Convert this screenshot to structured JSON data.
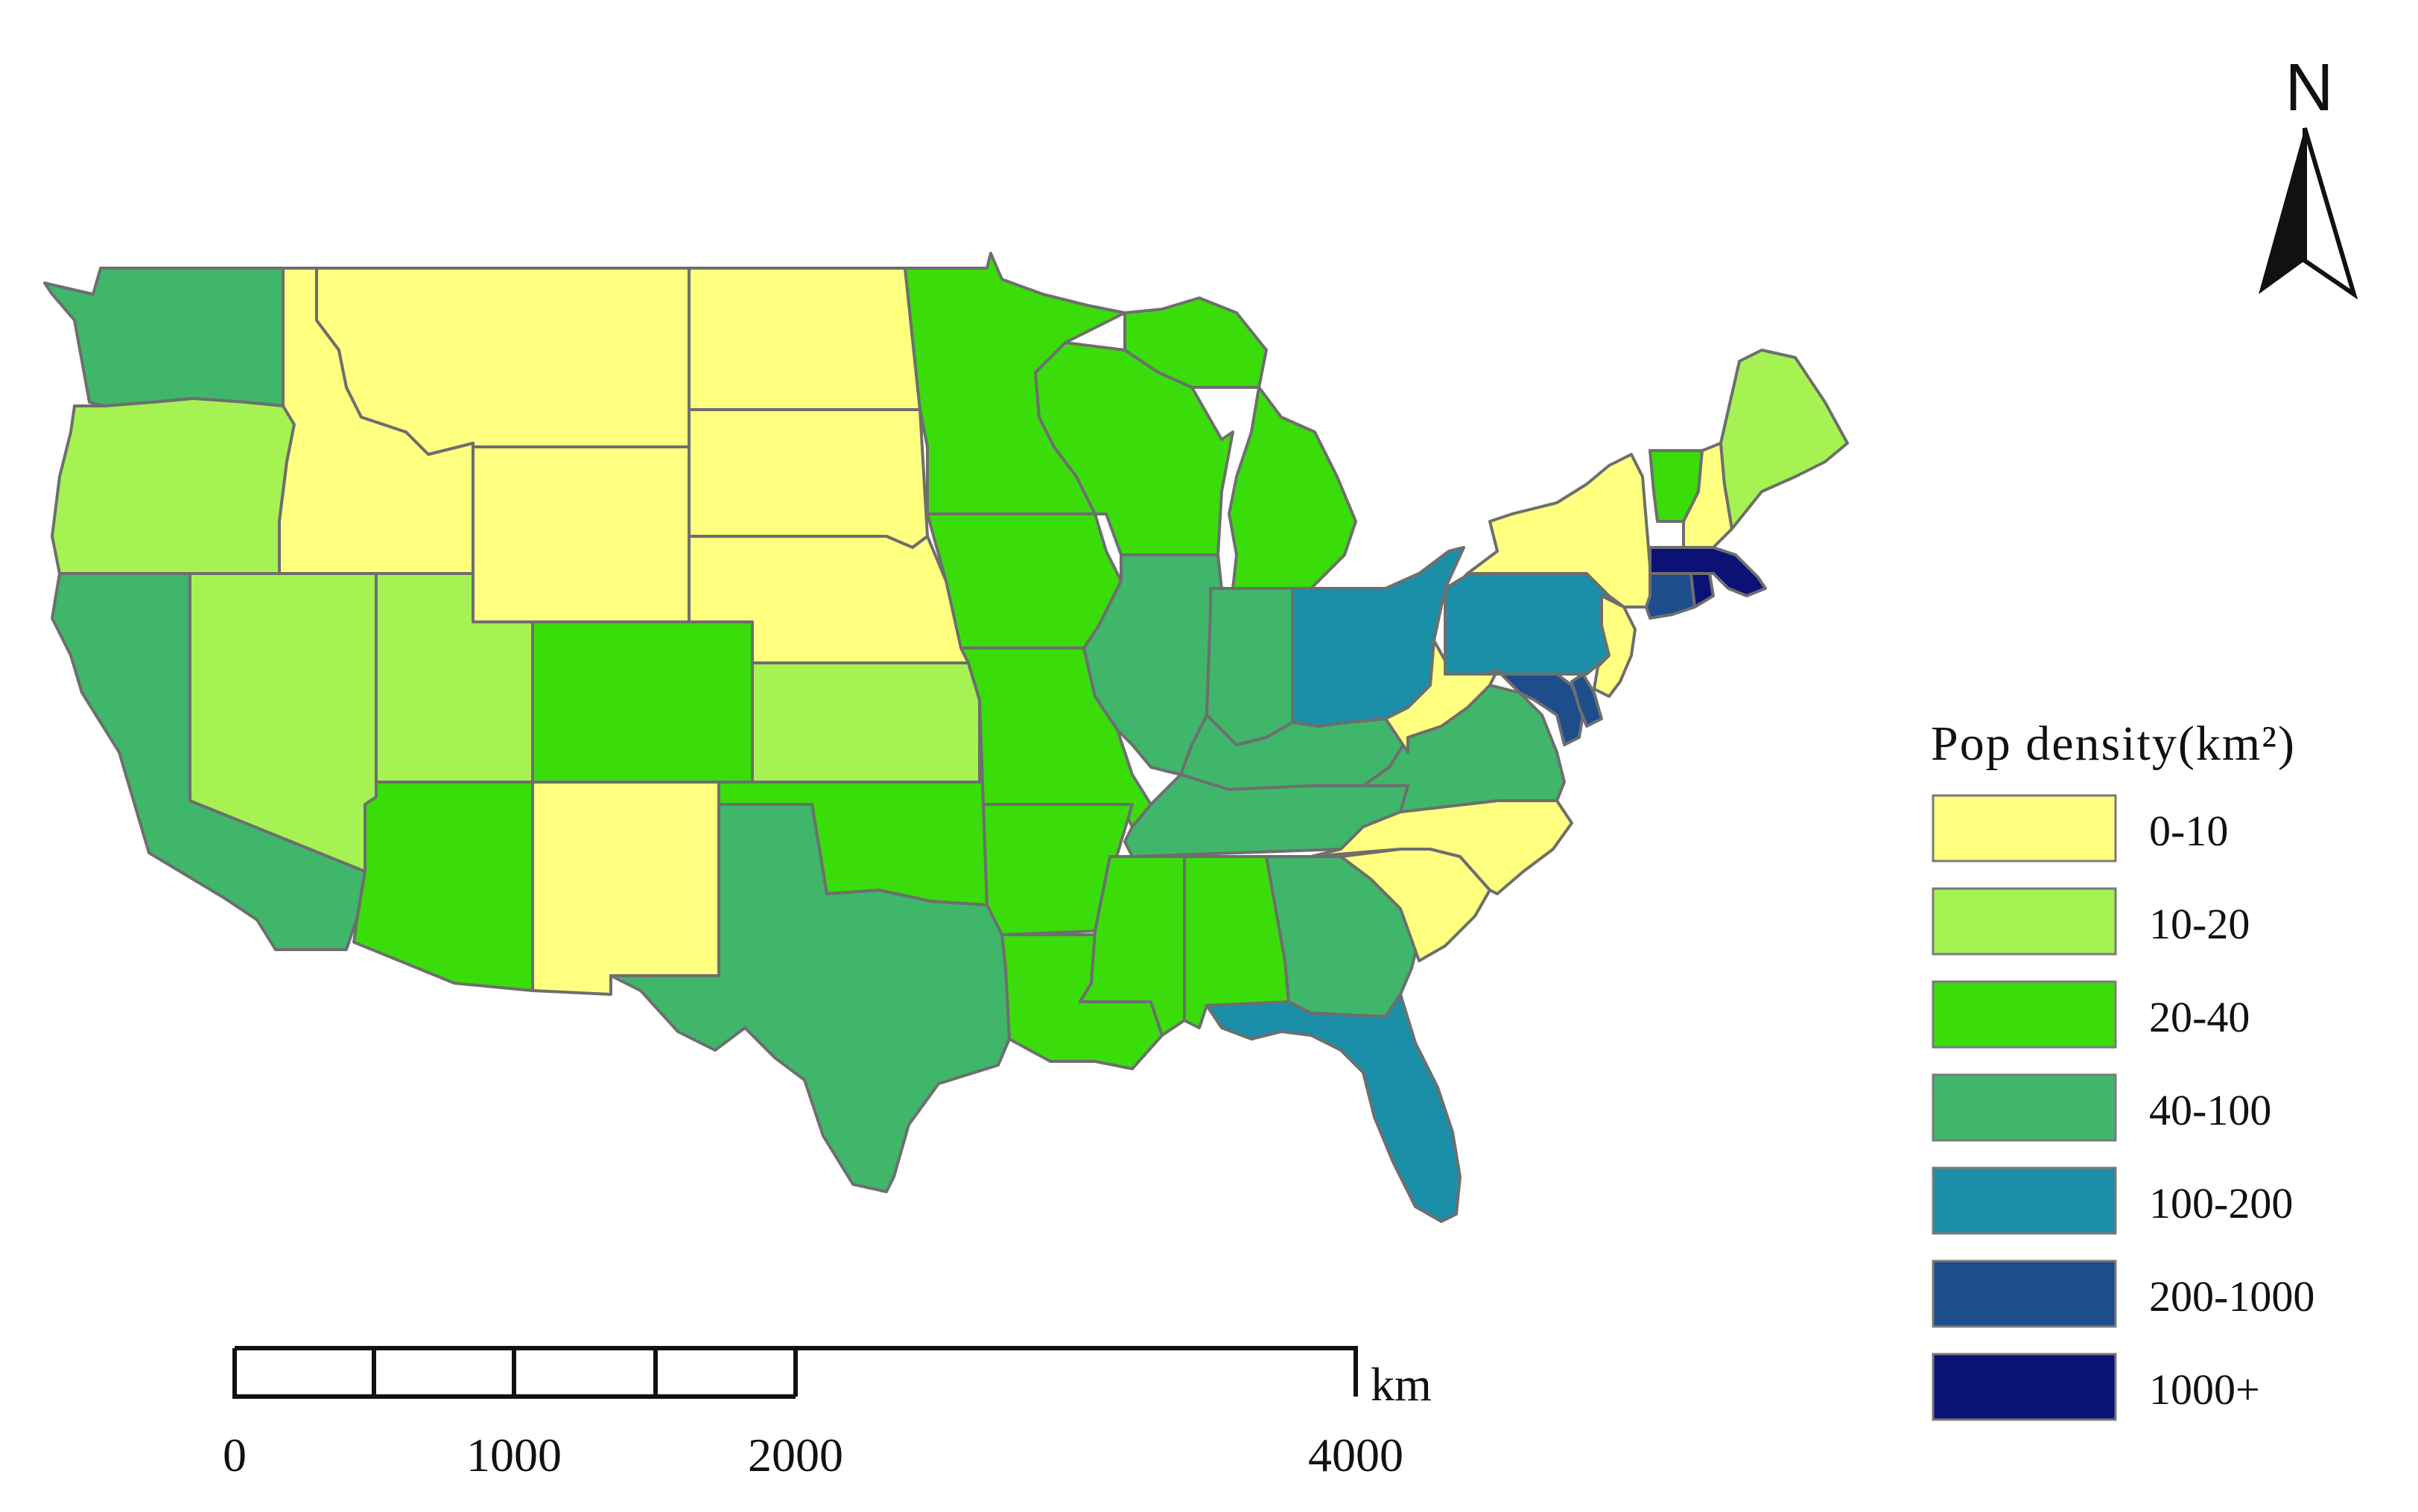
{
  "legend": {
    "title": "Pop density(km²)",
    "classes": [
      {
        "label": "0-10",
        "color": "#FFFF80"
      },
      {
        "label": "10-20",
        "color": "#A6F252"
      },
      {
        "label": "20-40",
        "color": "#3ADD0A"
      },
      {
        "label": "40-100",
        "color": "#3FB66A"
      },
      {
        "label": "100-200",
        "color": "#1B8EA8"
      },
      {
        "label": "200-1000",
        "color": "#1E4D8C"
      },
      {
        "label": "1000+",
        "color": "#0B1276"
      }
    ]
  },
  "north_arrow": {
    "letter": "N",
    "icon": "north-arrow-icon"
  },
  "scale_bar": {
    "unit": "km",
    "labels": [
      "0",
      "1000",
      "2000",
      "4000"
    ],
    "ticks_km": [
      0,
      1000,
      2000,
      4000
    ]
  },
  "states": [
    {
      "name": "WA",
      "class": 3
    },
    {
      "name": "OR",
      "class": 1
    },
    {
      "name": "CA",
      "class": 3
    },
    {
      "name": "NV",
      "class": 1
    },
    {
      "name": "ID",
      "class": 0
    },
    {
      "name": "MT",
      "class": 0
    },
    {
      "name": "WY",
      "class": 0
    },
    {
      "name": "UT",
      "class": 1
    },
    {
      "name": "AZ",
      "class": 2
    },
    {
      "name": "CO",
      "class": 2
    },
    {
      "name": "NM",
      "class": 0
    },
    {
      "name": "ND",
      "class": 0
    },
    {
      "name": "SD",
      "class": 0
    },
    {
      "name": "NE",
      "class": 0
    },
    {
      "name": "KS",
      "class": 1
    },
    {
      "name": "OK",
      "class": 2
    },
    {
      "name": "TX",
      "class": 3
    },
    {
      "name": "MN",
      "class": 2
    },
    {
      "name": "IA",
      "class": 2
    },
    {
      "name": "MO",
      "class": 2
    },
    {
      "name": "AR",
      "class": 2
    },
    {
      "name": "LA",
      "class": 2
    },
    {
      "name": "WI",
      "class": 2
    },
    {
      "name": "MI",
      "class": 2
    },
    {
      "name": "IL",
      "class": 3
    },
    {
      "name": "IN",
      "class": 3
    },
    {
      "name": "OH",
      "class": 4
    },
    {
      "name": "KY",
      "class": 3
    },
    {
      "name": "TN",
      "class": 3
    },
    {
      "name": "MS",
      "class": 2
    },
    {
      "name": "AL",
      "class": 2
    },
    {
      "name": "GA",
      "class": 3
    },
    {
      "name": "FL",
      "class": 4
    },
    {
      "name": "SC",
      "class": 0
    },
    {
      "name": "NC",
      "class": 0
    },
    {
      "name": "VA",
      "class": 3
    },
    {
      "name": "WV",
      "class": 0
    },
    {
      "name": "PA",
      "class": 4
    },
    {
      "name": "MD",
      "class": 5
    },
    {
      "name": "DE",
      "class": 5
    },
    {
      "name": "NJ",
      "class": 0
    },
    {
      "name": "NY",
      "class": 0
    },
    {
      "name": "CT",
      "class": 5
    },
    {
      "name": "RI",
      "class": 6
    },
    {
      "name": "MA",
      "class": 6
    },
    {
      "name": "VT",
      "class": 2
    },
    {
      "name": "NH",
      "class": 0
    },
    {
      "name": "ME",
      "class": 1
    }
  ]
}
